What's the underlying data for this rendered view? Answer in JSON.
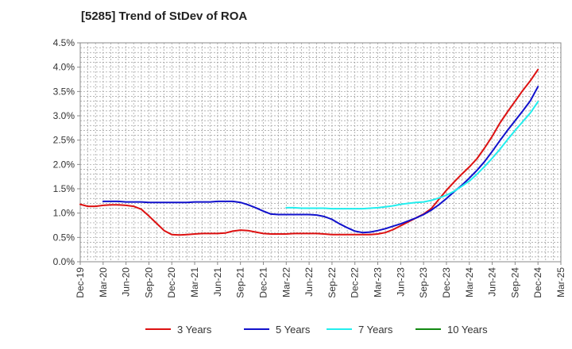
{
  "chart_data": {
    "type": "line",
    "title": "[5285]  Trend of StDev of ROA",
    "xlabel": "",
    "ylabel": "",
    "ylim": [
      0,
      4.5
    ],
    "yticks": [
      "0.0%",
      "0.5%",
      "1.0%",
      "1.5%",
      "2.0%",
      "2.5%",
      "3.0%",
      "3.5%",
      "4.0%",
      "4.5%"
    ],
    "x_tick_labels": [
      "Dec-19",
      "Mar-20",
      "Jun-20",
      "Sep-20",
      "Dec-20",
      "Mar-21",
      "Jun-21",
      "Sep-21",
      "Dec-21",
      "Mar-22",
      "Jun-22",
      "Sep-22",
      "Dec-22",
      "Mar-23",
      "Jun-23",
      "Sep-23",
      "Dec-23",
      "Mar-24",
      "Jun-24",
      "Sep-24",
      "Dec-24",
      "Mar-25"
    ],
    "grid": true,
    "legend_position": "bottom",
    "series": [
      {
        "name": "3 Years",
        "color": "#dd1111",
        "x": [
          "Dec-19",
          "Jan-20",
          "Feb-20",
          "Mar-20",
          "Apr-20",
          "May-20",
          "Jun-20",
          "Jul-20",
          "Aug-20",
          "Sep-20",
          "Oct-20",
          "Nov-20",
          "Dec-20",
          "Jan-21",
          "Feb-21",
          "Mar-21",
          "Apr-21",
          "May-21",
          "Jun-21",
          "Jul-21",
          "Aug-21",
          "Sep-21",
          "Oct-21",
          "Nov-21",
          "Dec-21",
          "Jan-22",
          "Feb-22",
          "Mar-22",
          "Apr-22",
          "May-22",
          "Jun-22",
          "Jul-22",
          "Aug-22",
          "Sep-22",
          "Oct-22",
          "Nov-22",
          "Dec-22",
          "Jan-23",
          "Feb-23",
          "Mar-23",
          "Apr-23",
          "May-23",
          "Jun-23",
          "Jul-23",
          "Aug-23",
          "Sep-23",
          "Oct-23",
          "Nov-23",
          "Dec-23",
          "Jan-24",
          "Feb-24",
          "Mar-24",
          "Apr-24",
          "May-24",
          "Jun-24",
          "Jul-24",
          "Aug-24",
          "Sep-24",
          "Oct-24",
          "Nov-24",
          "Dec-24"
        ],
        "values": [
          1.18,
          1.14,
          1.14,
          1.16,
          1.17,
          1.17,
          1.16,
          1.14,
          1.08,
          0.94,
          0.79,
          0.64,
          0.56,
          0.55,
          0.56,
          0.57,
          0.58,
          0.58,
          0.58,
          0.59,
          0.63,
          0.65,
          0.64,
          0.61,
          0.58,
          0.57,
          0.57,
          0.57,
          0.58,
          0.58,
          0.58,
          0.58,
          0.57,
          0.56,
          0.56,
          0.56,
          0.56,
          0.56,
          0.56,
          0.57,
          0.6,
          0.66,
          0.74,
          0.82,
          0.9,
          0.98,
          1.09,
          1.28,
          1.47,
          1.64,
          1.8,
          1.95,
          2.12,
          2.34,
          2.58,
          2.85,
          3.08,
          3.3,
          3.52,
          3.72,
          3.95
        ]
      },
      {
        "name": "5 Years",
        "color": "#1111cc",
        "x": [
          "Mar-20",
          "Apr-20",
          "May-20",
          "Jun-20",
          "Jul-20",
          "Aug-20",
          "Sep-20",
          "Oct-20",
          "Nov-20",
          "Dec-20",
          "Jan-21",
          "Feb-21",
          "Mar-21",
          "Apr-21",
          "May-21",
          "Jun-21",
          "Jul-21",
          "Aug-21",
          "Sep-21",
          "Oct-21",
          "Nov-21",
          "Dec-21",
          "Jan-22",
          "Feb-22",
          "Mar-22",
          "Apr-22",
          "May-22",
          "Jun-22",
          "Jul-22",
          "Aug-22",
          "Sep-22",
          "Oct-22",
          "Nov-22",
          "Dec-22",
          "Jan-23",
          "Feb-23",
          "Mar-23",
          "Apr-23",
          "May-23",
          "Jun-23",
          "Jul-23",
          "Aug-23",
          "Sep-23",
          "Oct-23",
          "Nov-23",
          "Dec-23",
          "Jan-24",
          "Feb-24",
          "Mar-24",
          "Apr-24",
          "May-24",
          "Jun-24",
          "Jul-24",
          "Aug-24",
          "Sep-24",
          "Oct-24",
          "Nov-24",
          "Dec-24"
        ],
        "values": [
          1.24,
          1.24,
          1.24,
          1.23,
          1.23,
          1.23,
          1.22,
          1.22,
          1.22,
          1.22,
          1.22,
          1.22,
          1.23,
          1.23,
          1.23,
          1.24,
          1.24,
          1.24,
          1.22,
          1.17,
          1.11,
          1.04,
          0.98,
          0.97,
          0.97,
          0.97,
          0.97,
          0.97,
          0.96,
          0.93,
          0.87,
          0.78,
          0.7,
          0.63,
          0.6,
          0.61,
          0.64,
          0.68,
          0.73,
          0.78,
          0.84,
          0.9,
          0.97,
          1.06,
          1.17,
          1.3,
          1.44,
          1.57,
          1.72,
          1.88,
          2.06,
          2.27,
          2.49,
          2.7,
          2.9,
          3.1,
          3.31,
          3.6
        ]
      },
      {
        "name": "7 Years",
        "color": "#22eeee",
        "x": [
          "Mar-22",
          "Apr-22",
          "May-22",
          "Jun-22",
          "Jul-22",
          "Aug-22",
          "Sep-22",
          "Oct-22",
          "Nov-22",
          "Dec-22",
          "Jan-23",
          "Feb-23",
          "Mar-23",
          "Apr-23",
          "May-23",
          "Jun-23",
          "Jul-23",
          "Aug-23",
          "Sep-23",
          "Oct-23",
          "Nov-23",
          "Dec-23",
          "Jan-24",
          "Feb-24",
          "Mar-24",
          "Apr-24",
          "May-24",
          "Jun-24",
          "Jul-24",
          "Aug-24",
          "Sep-24",
          "Oct-24",
          "Nov-24",
          "Dec-24"
        ],
        "values": [
          1.11,
          1.11,
          1.1,
          1.1,
          1.1,
          1.1,
          1.09,
          1.09,
          1.09,
          1.09,
          1.09,
          1.1,
          1.11,
          1.13,
          1.15,
          1.18,
          1.2,
          1.22,
          1.23,
          1.26,
          1.31,
          1.37,
          1.45,
          1.55,
          1.66,
          1.8,
          1.96,
          2.13,
          2.31,
          2.51,
          2.7,
          2.88,
          3.06,
          3.29
        ]
      },
      {
        "name": "10 Years",
        "color": "#118811",
        "x": [],
        "values": []
      }
    ]
  }
}
